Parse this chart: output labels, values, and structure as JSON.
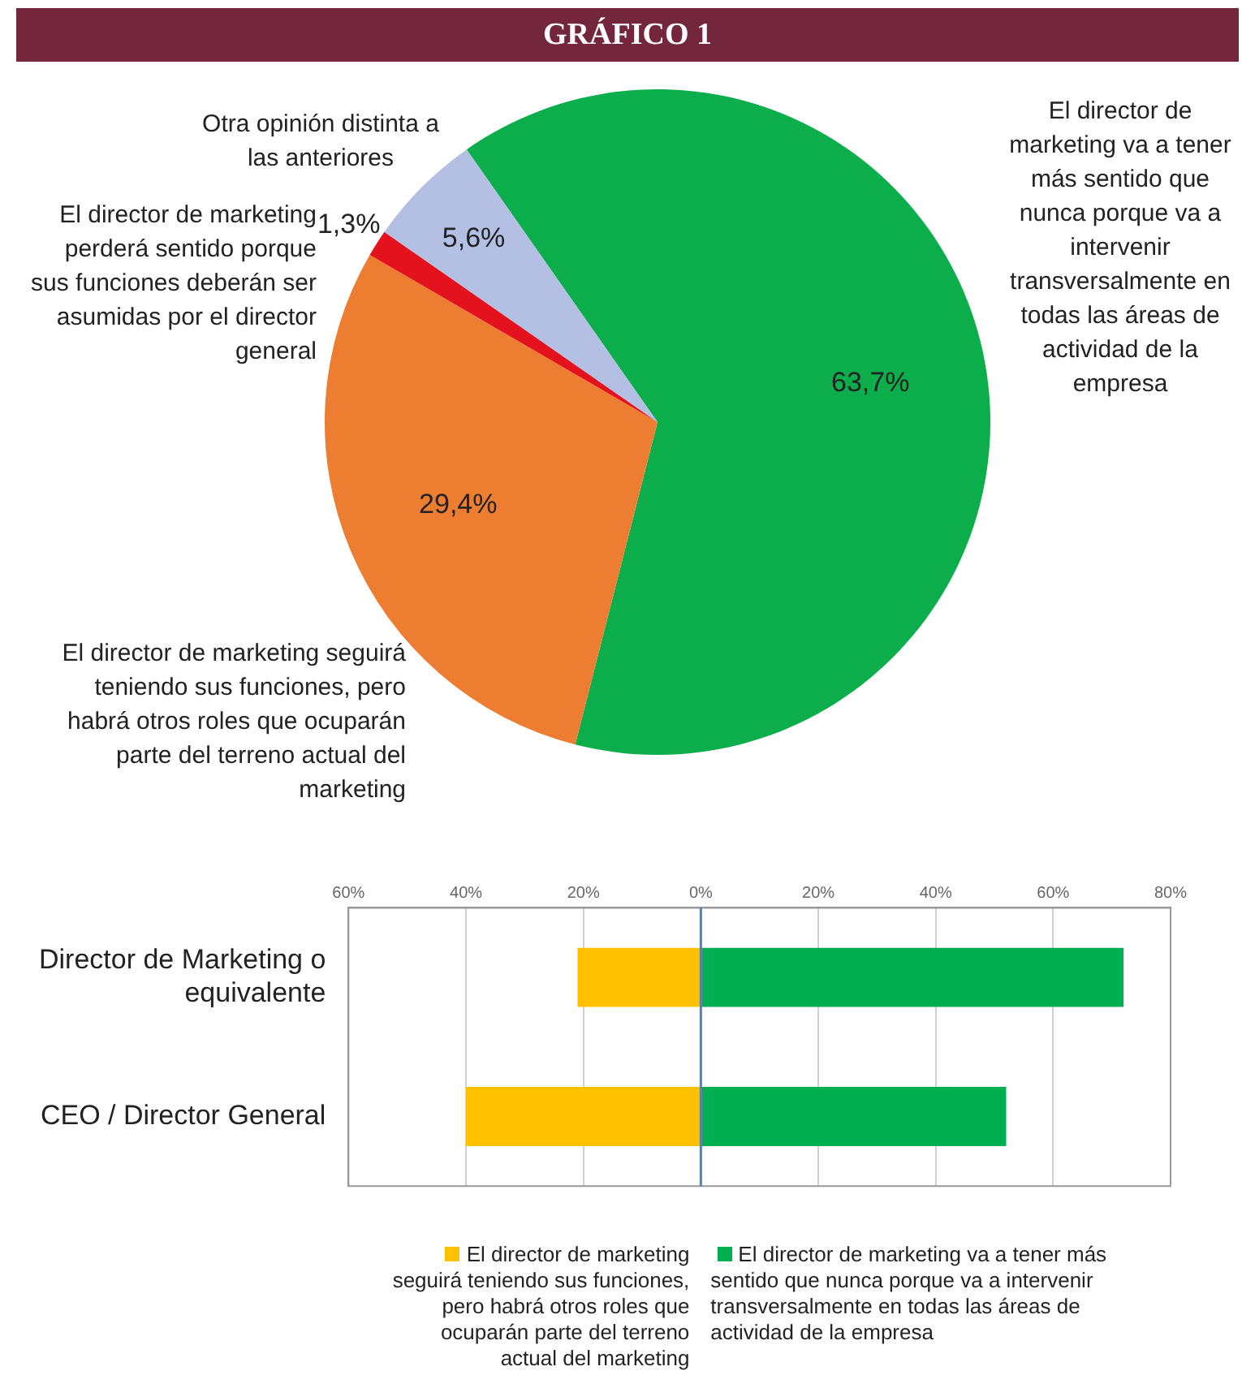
{
  "chart_data": [
    {
      "type": "pie",
      "title": "GRÁFICO 1",
      "categories": [
        "El director de marketing va a tener más sentido que nunca porque va a intervenir transversalmente en todas las áreas de actividad de la empresa",
        "El director de marketing seguirá teniendo sus funciones, pero habrá otros roles que ocuparán parte del terreno actual del marketing",
        "El director de marketing perderá sentido porque sus funciones deberán ser asumidas por el director general",
        "Otra opinión distinta a las anteriores"
      ],
      "values": [
        63.7,
        29.4,
        1.3,
        5.6
      ],
      "colors": [
        "#0cad4b",
        "#ec7d31",
        "#e3121c",
        "#b3bfe3"
      ],
      "value_labels": [
        "63,7%",
        "29,4%",
        "1,3%",
        "5,6%"
      ],
      "legend": false
    },
    {
      "type": "bar",
      "orientation": "horizontal",
      "stacked": true,
      "categories": [
        "Director de Marketing o equivalente",
        "CEO / Director General"
      ],
      "series": [
        {
          "name": "El director de marketing seguirá teniendo sus funciones, pero habrá otros roles que ocuparán parte del terreno actual del marketing",
          "color": "#ffc000",
          "values": [
            -21,
            -40
          ]
        },
        {
          "name": "El director de marketing va a tener más sentido que nunca porque va a intervenir transversalmente en todas las áreas de actividad de la empresa",
          "color": "#00b050",
          "values": [
            72,
            52
          ]
        }
      ],
      "xlim": [
        -60,
        80
      ],
      "xticks": [
        {
          "value": -60,
          "label": "60%"
        },
        {
          "value": -40,
          "label": "40%"
        },
        {
          "value": -20,
          "label": "20%"
        },
        {
          "value": 0,
          "label": "0%"
        },
        {
          "value": 20,
          "label": "20%"
        },
        {
          "value": 40,
          "label": "40%"
        },
        {
          "value": 60,
          "label": "60%"
        },
        {
          "value": 80,
          "label": "80%"
        }
      ],
      "ref_lines": [
        {
          "axis": "x",
          "value": 0,
          "color": "#5b7fa6"
        }
      ],
      "grid": "x",
      "legend": "bottom"
    }
  ]
}
